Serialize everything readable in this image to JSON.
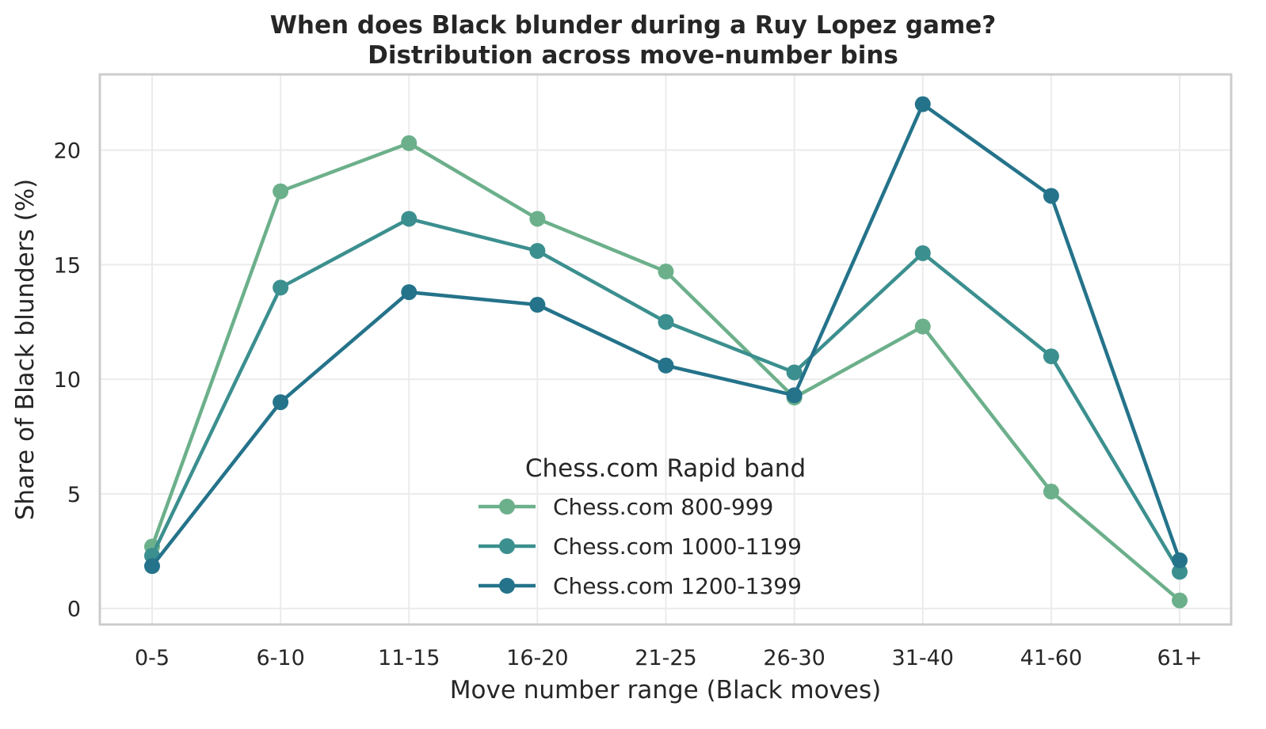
{
  "chart_data": {
    "type": "line",
    "title": "When does Black blunder during a Ruy Lopez game?",
    "subtitle": "Distribution across move-number bins",
    "xlabel": "Move number range (Black moves)",
    "ylabel": "Share of Black blunders (%)",
    "categories": [
      "0-5",
      "6-10",
      "11-15",
      "16-20",
      "21-25",
      "26-30",
      "31-40",
      "41-60",
      "61+"
    ],
    "ylim": [
      -0.7,
      23.3
    ],
    "yticks": [
      0,
      5,
      10,
      15,
      20
    ],
    "grid": true,
    "legend_title": "Chess.com Rapid band",
    "legend_position": "bottom-center",
    "series": [
      {
        "name": "Chess.com 800-999",
        "color": "#6cb08b",
        "values": [
          2.7,
          18.2,
          20.3,
          17.0,
          14.7,
          9.2,
          12.3,
          5.1,
          0.35
        ]
      },
      {
        "name": "Chess.com 1000-1199",
        "color": "#3c8f8f",
        "values": [
          2.3,
          14.0,
          17.0,
          15.6,
          12.5,
          10.3,
          15.5,
          11.0,
          1.6
        ]
      },
      {
        "name": "Chess.com 1200-1399",
        "color": "#24738a",
        "values": [
          1.85,
          9.0,
          13.8,
          13.25,
          10.6,
          9.3,
          22.0,
          18.0,
          2.1
        ]
      }
    ]
  }
}
